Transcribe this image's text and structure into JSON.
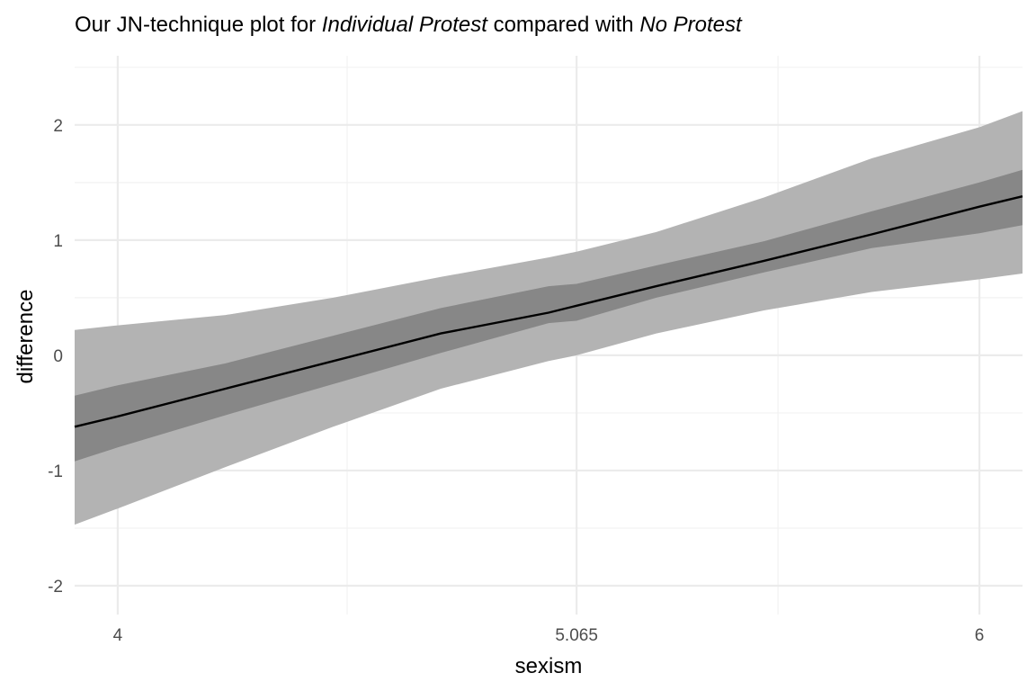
{
  "chart_data": {
    "type": "line",
    "title_parts": [
      {
        "text": "Our JN-technique plot for ",
        "italic": false
      },
      {
        "text": "Individual Protest",
        "italic": true
      },
      {
        "text": " compared with ",
        "italic": false
      },
      {
        "text": "No Protest",
        "italic": true
      }
    ],
    "xlabel": "sexism",
    "ylabel": "difference",
    "xlim": [
      3.9,
      6.1
    ],
    "ylim": [
      -2.25,
      2.6
    ],
    "x_ticks": [
      4,
      5.065,
      6
    ],
    "x_tick_labels": [
      "4",
      "5.065",
      "6"
    ],
    "x_minor_ticks": [
      4.5325,
      5.5325
    ],
    "y_ticks": [
      -2,
      -1,
      0,
      1,
      2
    ],
    "y_tick_labels": [
      "-2",
      "-1",
      "0",
      "1",
      "2"
    ],
    "y_minor_ticks": [
      -1.5,
      -0.5,
      0.5,
      1.5,
      2.5
    ],
    "grid": true,
    "x": [
      3.9,
      4.0,
      4.25,
      4.5,
      4.75,
      5.0,
      5.065,
      5.25,
      5.5,
      5.75,
      6.0,
      6.1
    ],
    "series": [
      {
        "values": [
          -0.62,
          -0.53,
          -0.29,
          -0.05,
          0.19,
          0.37,
          0.43,
          0.6,
          0.82,
          1.05,
          1.29,
          1.38
        ],
        "color": "#000000"
      }
    ],
    "bands": [
      {
        "lower": [
          -1.47,
          -1.33,
          -0.97,
          -0.62,
          -0.29,
          -0.05,
          0.0,
          0.19,
          0.39,
          0.55,
          0.66,
          0.71
        ],
        "upper": [
          0.22,
          0.26,
          0.35,
          0.5,
          0.68,
          0.85,
          0.9,
          1.07,
          1.37,
          1.71,
          1.98,
          2.12
        ],
        "fill": "#b3b3b3"
      },
      {
        "lower": [
          -0.92,
          -0.8,
          -0.52,
          -0.25,
          0.02,
          0.28,
          0.3,
          0.5,
          0.72,
          0.93,
          1.06,
          1.13
        ],
        "upper": [
          -0.35,
          -0.26,
          -0.07,
          0.17,
          0.41,
          0.6,
          0.62,
          0.78,
          0.99,
          1.25,
          1.5,
          1.61
        ],
        "fill": "#878787"
      }
    ]
  }
}
